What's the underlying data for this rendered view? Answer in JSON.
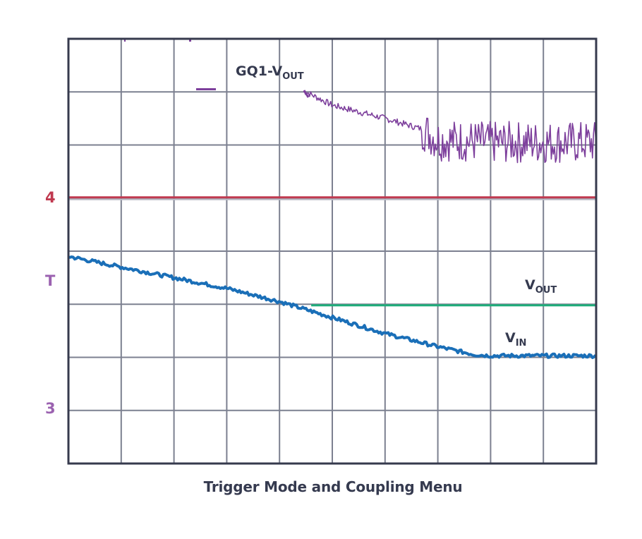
{
  "caption": "Trigger Mode and Coupling Menu",
  "colors": {
    "frame": "#363a4d",
    "grid": "#7c8090",
    "ch4": "#c0394f",
    "ch3": "#9b62b0",
    "trigger": "#9b62b0",
    "vin": "#1a6fb8",
    "vout": "#1fad7a",
    "gq1": "#7d3f9c",
    "text": "#353a4f"
  },
  "markers": {
    "ch4": "4",
    "trigger": "T",
    "ch3": "3"
  },
  "labels": {
    "gq1": {
      "main": "GQ1-V",
      "sub": "OUT"
    },
    "vout": {
      "main": "V",
      "sub": "OUT"
    },
    "vin": {
      "main": "V",
      "sub": "IN"
    }
  },
  "chart_data": {
    "type": "line",
    "title": "Trigger Mode and Coupling Menu",
    "xlabel": "",
    "ylabel": "",
    "grid": true,
    "divisions": {
      "x": 10,
      "y": 8
    },
    "xlim": [
      0,
      10
    ],
    "ylim": [
      0,
      8
    ],
    "note": "Oscilloscope capture; values in grid divisions from bottom-left (y=8 top).",
    "legend_position": "inline annotations",
    "channel_markers": [
      {
        "label": "4",
        "y_div": 5.0
      },
      {
        "label": "T",
        "y_div": 3.45
      },
      {
        "label": "3",
        "y_div": 1.0
      }
    ],
    "series": [
      {
        "name": "GQ1-VOUT",
        "x": [
          1.05,
          2.3,
          3.4,
          4.5,
          5.0,
          6.0,
          6.7,
          7.0,
          8.0,
          9.0,
          10.0
        ],
        "y": [
          8.0,
          7.05,
          7.05,
          7.0,
          6.75,
          6.5,
          6.3,
          6.1,
          6.05,
          6.05,
          6.05
        ],
        "noise_band_after_x": 6.7,
        "noise_amplitude_div": 0.4
      },
      {
        "name": "Channel 4 reference",
        "x": [
          0,
          10
        ],
        "y": [
          5.0,
          5.0
        ]
      },
      {
        "name": "VIN",
        "x": [
          0,
          1,
          2,
          3,
          4,
          5,
          6,
          7,
          7.7,
          8,
          9,
          10
        ],
        "y": [
          3.9,
          3.7,
          3.5,
          3.3,
          3.05,
          2.75,
          2.45,
          2.2,
          2.05,
          2.03,
          2.03,
          2.03
        ]
      },
      {
        "name": "VOUT",
        "x": [
          4.6,
          10.0
        ],
        "y": [
          2.98,
          2.98
        ]
      }
    ]
  }
}
